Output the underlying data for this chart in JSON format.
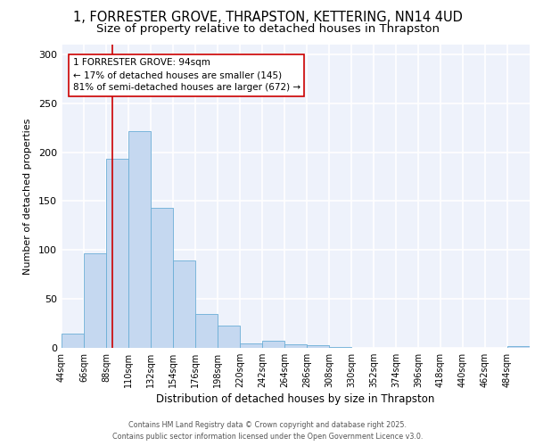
{
  "title1": "1, FORRESTER GROVE, THRAPSTON, KETTERING, NN14 4UD",
  "title2": "Size of property relative to detached houses in Thrapston",
  "xlabel": "Distribution of detached houses by size in Thrapston",
  "ylabel": "Number of detached properties",
  "bin_edges": [
    44,
    66,
    88,
    110,
    132,
    154,
    176,
    198,
    220,
    242,
    264,
    286,
    308,
    330,
    352,
    374,
    396,
    418,
    440,
    462,
    484,
    506
  ],
  "bin_labels": [
    "44sqm",
    "66sqm",
    "88sqm",
    "110sqm",
    "132sqm",
    "154sqm",
    "176sqm",
    "198sqm",
    "220sqm",
    "242sqm",
    "264sqm",
    "286sqm",
    "308sqm",
    "330sqm",
    "352sqm",
    "374sqm",
    "396sqm",
    "418sqm",
    "440sqm",
    "462sqm",
    "484sqm"
  ],
  "counts": [
    15,
    97,
    193,
    222,
    143,
    89,
    35,
    23,
    5,
    7,
    4,
    3,
    1,
    0,
    0,
    0,
    0,
    0,
    0,
    0,
    2
  ],
  "bar_color": "#c5d8f0",
  "bar_edge_color": "#6baed6",
  "property_size": 94,
  "vline_color": "#cc0000",
  "annotation_title": "1 FORRESTER GROVE: 94sqm",
  "annotation_line1": "← 17% of detached houses are smaller (145)",
  "annotation_line2": "81% of semi-detached houses are larger (672) →",
  "ylim": [
    0,
    310
  ],
  "yticks": [
    0,
    50,
    100,
    150,
    200,
    250,
    300
  ],
  "footer1": "Contains HM Land Registry data © Crown copyright and database right 2025.",
  "footer2": "Contains public sector information licensed under the Open Government Licence v3.0.",
  "bg_color": "#eef2fb",
  "grid_color": "#ffffff",
  "title1_fontsize": 10.5,
  "title2_fontsize": 9.5,
  "ann_fontsize": 7.5,
  "xlabel_fontsize": 8.5,
  "ylabel_fontsize": 8,
  "tick_fontsize": 7,
  "ytick_fontsize": 8
}
